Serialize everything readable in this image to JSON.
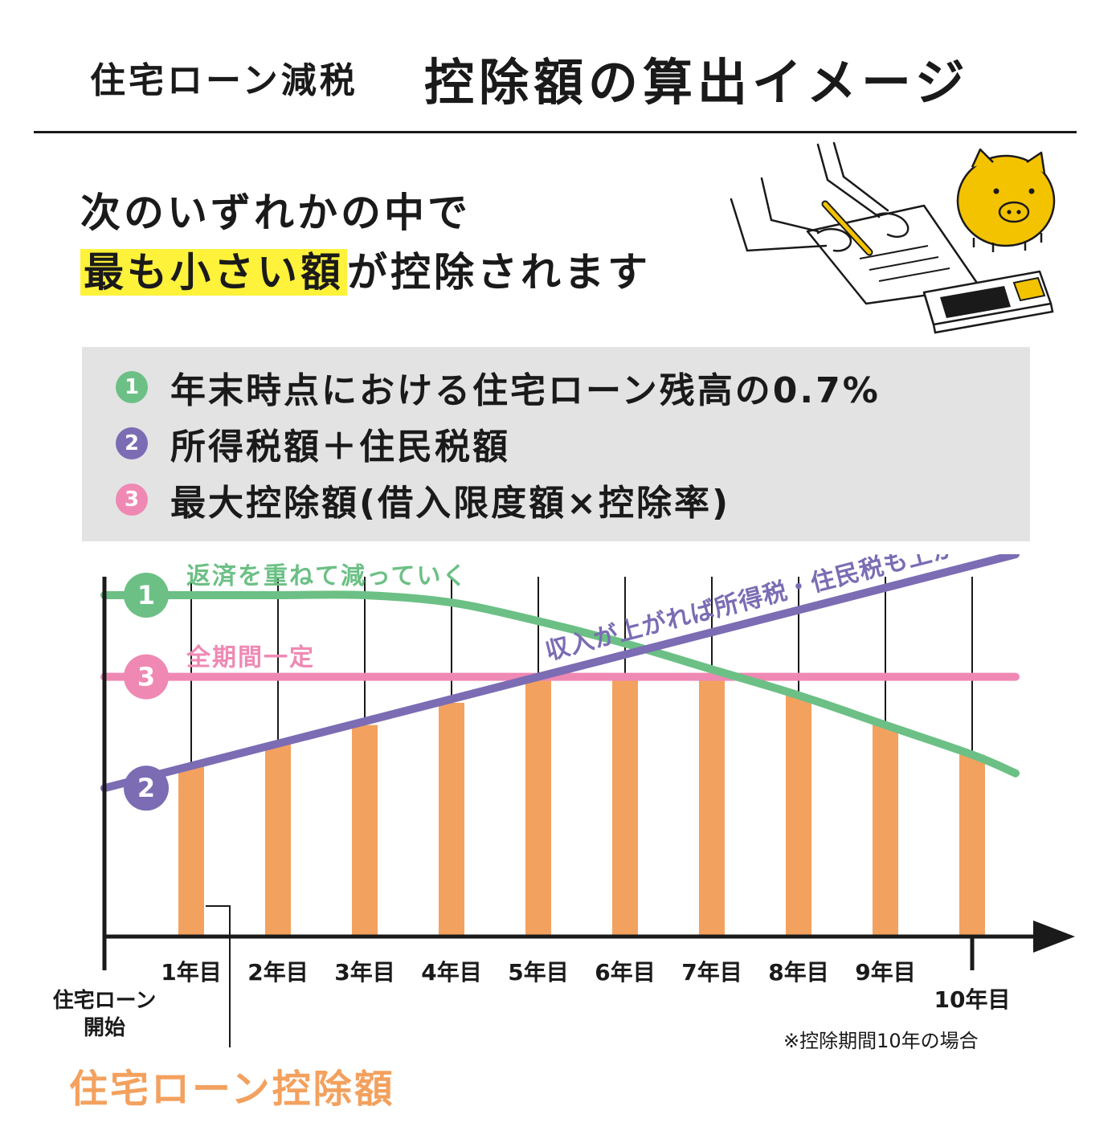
{
  "header": {
    "title_small": "住宅ローン減税",
    "title_large": "控除額の算出イメージ"
  },
  "lead": {
    "line1": "次のいずれかの中で",
    "line2_highlight": "最も小さい額",
    "line2_rest": "が控除されます"
  },
  "conditions": [
    {
      "badge": "1",
      "text": "年末時点における住宅ローン残高の0.7%",
      "color": "#6cc085"
    },
    {
      "badge": "2",
      "text": "所得税額＋住民税額",
      "color": "#7b6cb4"
    },
    {
      "badge": "3",
      "text": "最大控除額(借入限度額×控除率)",
      "color": "#ef89b4"
    }
  ],
  "chart_data": {
    "type": "bar",
    "categories": [
      "1年目",
      "2年目",
      "3年目",
      "4年目",
      "5年目",
      "6年目",
      "7年目",
      "8年目",
      "9年目",
      "10年目"
    ],
    "values": [
      46,
      52,
      57,
      63,
      70,
      70,
      70,
      65,
      57,
      49
    ],
    "bar_color": "#f3a15f",
    "ylim": [
      0,
      100
    ],
    "x_start_label": "住宅ローン開始",
    "lines": [
      {
        "badge": "1",
        "name": "返済を重ねて減っていく",
        "color": "#6cc085",
        "x": [
          0,
          1,
          2,
          3,
          4,
          5,
          6,
          7,
          8,
          9,
          10,
          10.5
        ],
        "y": [
          92,
          92,
          92,
          92,
          90,
          85,
          79,
          72,
          65,
          57,
          49,
          44
        ]
      },
      {
        "badge": "2",
        "name": "収入が上がれば所得税・住民税も上がる",
        "color": "#7b6cb4",
        "x": [
          0,
          10.5
        ],
        "y": [
          40,
          103
        ]
      },
      {
        "badge": "3",
        "name": "全期間一定",
        "color": "#ef89b4",
        "x": [
          0,
          10.5
        ],
        "y": [
          70,
          70
        ]
      }
    ],
    "note": "※控除期間10年の場合",
    "bar_label": "住宅ローン控除額"
  }
}
